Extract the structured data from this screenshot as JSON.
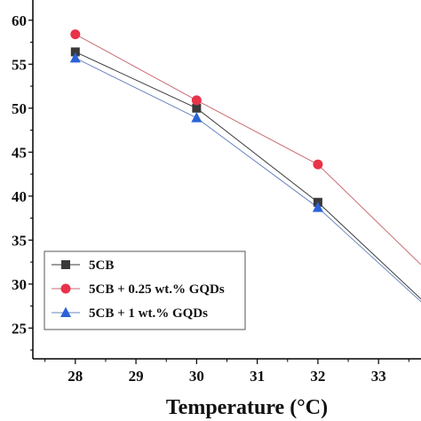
{
  "chart_data": {
    "type": "line",
    "title": "",
    "xlabel": "Temperature (°C)",
    "ylabel": "",
    "xlim": [
      27.3,
      33.7
    ],
    "ylim": [
      21.5,
      62.3
    ],
    "x_ticks": [
      28,
      29,
      30,
      31,
      32,
      33
    ],
    "y_ticks": [
      25,
      30,
      35,
      40,
      45,
      50,
      55,
      60
    ],
    "grid": false,
    "legend_position": "bottom-left",
    "series": [
      {
        "name": "5CB",
        "marker": "square",
        "color": "#3a3a3a",
        "x": [
          28,
          30,
          32,
          33.7
        ],
        "y": [
          56.4,
          50.0,
          39.3,
          28.3
        ]
      },
      {
        "name": "5CB + 0.25 wt.% GQDs",
        "marker": "circle",
        "color": "#e8334a",
        "line_color": "#c96b73",
        "x": [
          28,
          30,
          32,
          33.7
        ],
        "y": [
          58.4,
          50.9,
          43.6,
          32.2
        ]
      },
      {
        "name": "5CB + 1 wt.% GQDs",
        "marker": "triangle",
        "color": "#2a62d6",
        "line_color": "#6a86c0",
        "x": [
          28,
          30,
          32,
          33.7
        ],
        "y": [
          55.7,
          48.9,
          38.7,
          28.0
        ]
      }
    ]
  }
}
